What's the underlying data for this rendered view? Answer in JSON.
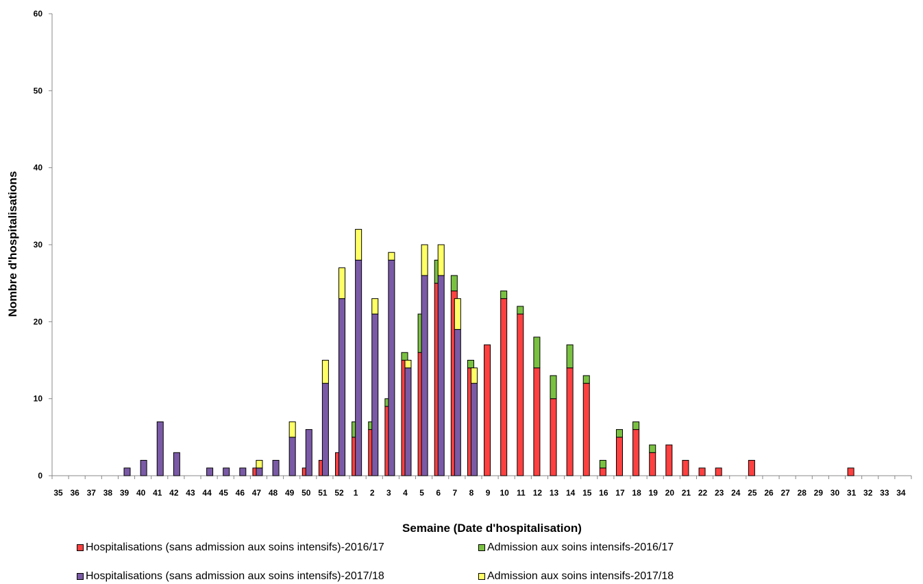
{
  "chart_data": {
    "type": "bar",
    "stacked": true,
    "xlabel": "Semaine (Date d'hospitalisation)",
    "ylabel": "Nombre d'hospitalisations",
    "ylim": [
      0,
      60
    ],
    "yticks": [
      0,
      10,
      20,
      30,
      40,
      50,
      60
    ],
    "grid": false,
    "legend_position": "bottom",
    "categories": [
      "35",
      "36",
      "37",
      "38",
      "39",
      "40",
      "41",
      "42",
      "43",
      "44",
      "45",
      "46",
      "47",
      "48",
      "49",
      "50",
      "51",
      "52",
      "1",
      "2",
      "3",
      "4",
      "5",
      "6",
      "7",
      "8",
      "9",
      "10",
      "11",
      "12",
      "13",
      "14",
      "15",
      "16",
      "17",
      "18",
      "19",
      "20",
      "21",
      "22",
      "23",
      "24",
      "25",
      "26",
      "27",
      "28",
      "29",
      "30",
      "31",
      "32",
      "33",
      "34"
    ],
    "series": [
      {
        "name": "Hospitalisations (sans admission aux soins intensifs)-2016/17",
        "color": "#ff4040",
        "season": "2016/17",
        "values": [
          0,
          0,
          0,
          0,
          0,
          0,
          0,
          0,
          0,
          0,
          0,
          0,
          1,
          0,
          0,
          1,
          2,
          3,
          5,
          6,
          9,
          15,
          16,
          25,
          24,
          14,
          17,
          23,
          21,
          14,
          10,
          14,
          12,
          1,
          5,
          6,
          3,
          4,
          2,
          1,
          1,
          0,
          2,
          0,
          0,
          0,
          0,
          0,
          1,
          0,
          0,
          0
        ]
      },
      {
        "name": "Admission aux soins intensifs-2016/17",
        "color": "#7ac142",
        "season": "2016/17",
        "values": [
          0,
          0,
          0,
          0,
          0,
          0,
          0,
          0,
          0,
          0,
          0,
          0,
          0,
          0,
          0,
          0,
          0,
          0,
          2,
          1,
          1,
          1,
          5,
          3,
          2,
          1,
          0,
          1,
          1,
          4,
          3,
          3,
          1,
          1,
          1,
          1,
          1,
          0,
          0,
          0,
          0,
          0,
          0,
          0,
          0,
          0,
          0,
          0,
          0,
          0,
          0,
          0
        ]
      },
      {
        "name": "Hospitalisations (sans admission aux soins intensifs)-2017/18",
        "color": "#7a5aa6",
        "season": "2017/18",
        "values": [
          0,
          0,
          0,
          0,
          1,
          2,
          7,
          3,
          0,
          1,
          1,
          1,
          1,
          2,
          5,
          6,
          12,
          23,
          28,
          21,
          28,
          14,
          26,
          26,
          19,
          12,
          0,
          0,
          0,
          0,
          0,
          0,
          0,
          0,
          0,
          0,
          0,
          0,
          0,
          0,
          0,
          0,
          0,
          0,
          0,
          0,
          0,
          0,
          0,
          0,
          0,
          0
        ]
      },
      {
        "name": "Admission aux soins intensifs-2017/18",
        "color": "#ffff66",
        "season": "2017/18",
        "values": [
          0,
          0,
          0,
          0,
          0,
          0,
          0,
          0,
          0,
          0,
          0,
          0,
          1,
          0,
          2,
          0,
          3,
          4,
          4,
          2,
          1,
          1,
          4,
          4,
          4,
          2,
          0,
          0,
          0,
          0,
          0,
          0,
          0,
          0,
          0,
          0,
          0,
          0,
          0,
          0,
          0,
          0,
          0,
          0,
          0,
          0,
          0,
          0,
          0,
          0,
          0,
          0
        ]
      }
    ]
  },
  "legend": {
    "items": [
      {
        "label": "Hospitalisations (sans admission aux soins intensifs)-2016/17",
        "color": "#ff4040"
      },
      {
        "label": "Admission aux soins intensifs-2016/17",
        "color": "#7ac142"
      },
      {
        "label": "Hospitalisations (sans admission aux soins intensifs)-2017/18",
        "color": "#7a5aa6"
      },
      {
        "label": "Admission aux soins intensifs-2017/18",
        "color": "#ffff66"
      }
    ]
  }
}
